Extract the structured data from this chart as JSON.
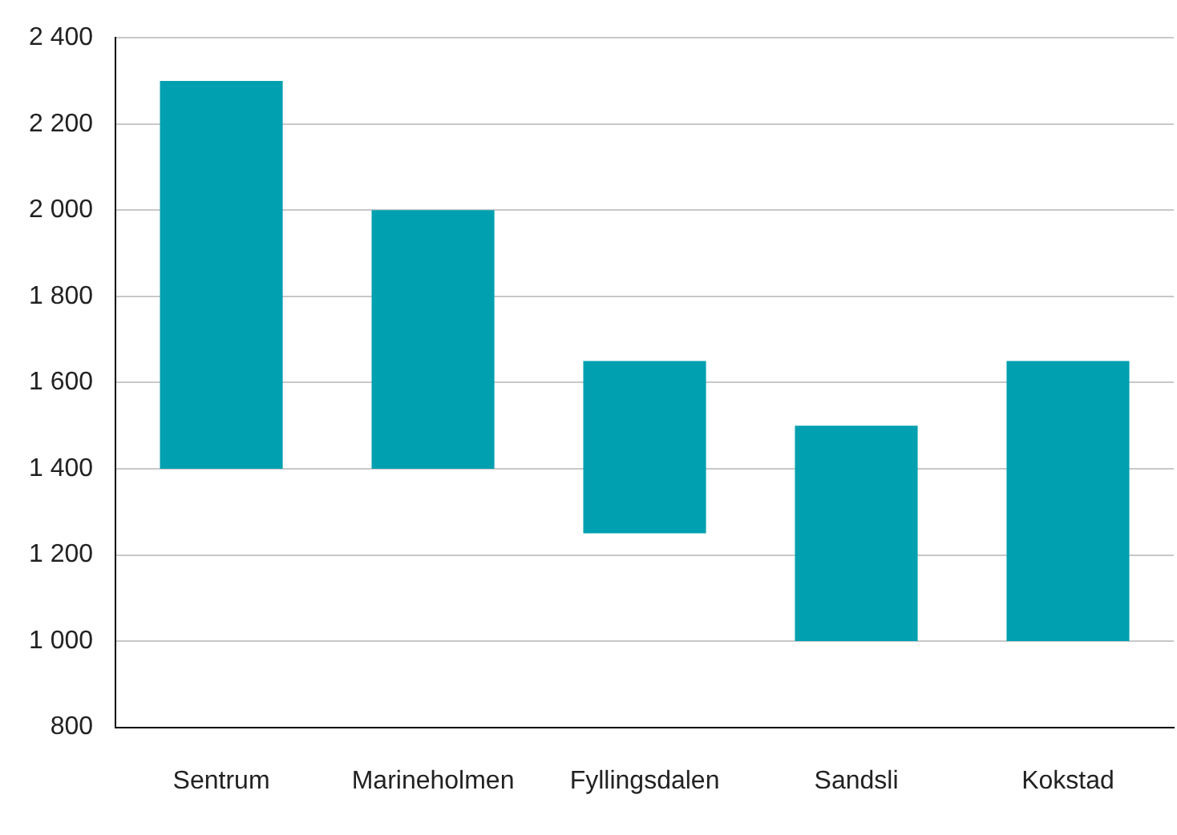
{
  "chart_data": {
    "type": "bar",
    "categories": [
      "Sentrum",
      "Marineholmen",
      "Fyllingsdalen",
      "Sandsli",
      "Kokstad"
    ],
    "base": [
      1400,
      1400,
      1250,
      1000,
      1000
    ],
    "values": [
      900,
      600,
      400,
      500,
      650
    ],
    "color": "#00a0b0",
    "ylim": [
      800,
      2400
    ],
    "yticks": [
      800,
      {
        "value": 1000,
        "label": "1 000"
      },
      {
        "value": 1200,
        "label": "1 200"
      },
      {
        "value": 1400,
        "label": "1 400"
      },
      {
        "value": 1600,
        "label": "1 600"
      },
      {
        "value": 1800,
        "label": "1 800"
      },
      {
        "value": 2000,
        "label": "2 000"
      },
      {
        "value": 2200,
        "label": "2 200"
      },
      {
        "value": 2400,
        "label": "2 400"
      }
    ],
    "grid": "y",
    "legend": false
  }
}
